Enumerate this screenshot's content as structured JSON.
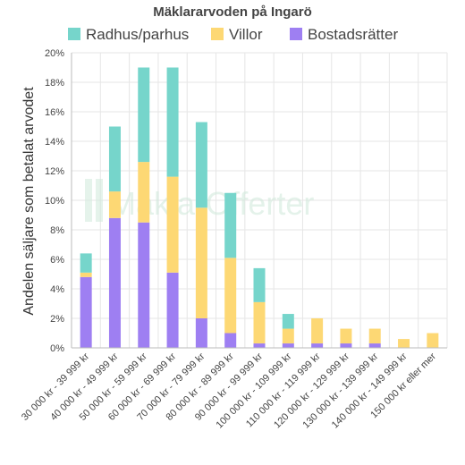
{
  "chart_data": {
    "type": "bar",
    "stacked": true,
    "title": "Mäklararvoden på Ingarö",
    "ylabel": "Andelen säljare som betalat arvodet",
    "xlabel": "",
    "ylim": [
      0,
      20
    ],
    "ytick_format": "{v}%",
    "yticks": [
      0,
      2,
      4,
      6,
      8,
      10,
      12,
      14,
      16,
      18,
      20
    ],
    "grid": true,
    "legend_position": "top",
    "categories": [
      "30 000 kr - 39 999 kr",
      "40 000 kr - 49 999 kr",
      "50 000 kr - 59 999 kr",
      "60 000 kr - 69 999 kr",
      "70 000 kr - 79 999 kr",
      "80 000 kr - 89 999 kr",
      "90 000 kr - 99 999 kr",
      "100 000 kr - 109 999 kr",
      "110 000 kr - 119 999 kr",
      "120 000 kr - 129 999 kr",
      "130 000 kr - 139 999 kr",
      "140 000 kr - 149 999 kr",
      "150 000 kr eller mer"
    ],
    "series": [
      {
        "name": "Bostadsrätter",
        "color": "#9e7ff2",
        "values": [
          4.8,
          8.8,
          8.5,
          5.1,
          2.0,
          1.0,
          0.3,
          0.3,
          0.3,
          0.3,
          0.3,
          0.0,
          0.0
        ]
      },
      {
        "name": "Villor",
        "color": "#fdd874",
        "values": [
          0.3,
          1.8,
          4.1,
          6.5,
          7.5,
          5.1,
          2.8,
          1.0,
          1.7,
          1.0,
          1.0,
          0.6,
          1.0
        ]
      },
      {
        "name": "Radhus/parhus",
        "color": "#76d5cb",
        "values": [
          1.3,
          4.4,
          6.4,
          7.4,
          5.8,
          4.4,
          2.3,
          1.0,
          0.0,
          0.0,
          0.0,
          0.0,
          0.0
        ]
      }
    ],
    "legend_order": [
      "Radhus/parhus",
      "Villor",
      "Bostadsrätter"
    ],
    "watermark": "MäklarOfferter"
  }
}
